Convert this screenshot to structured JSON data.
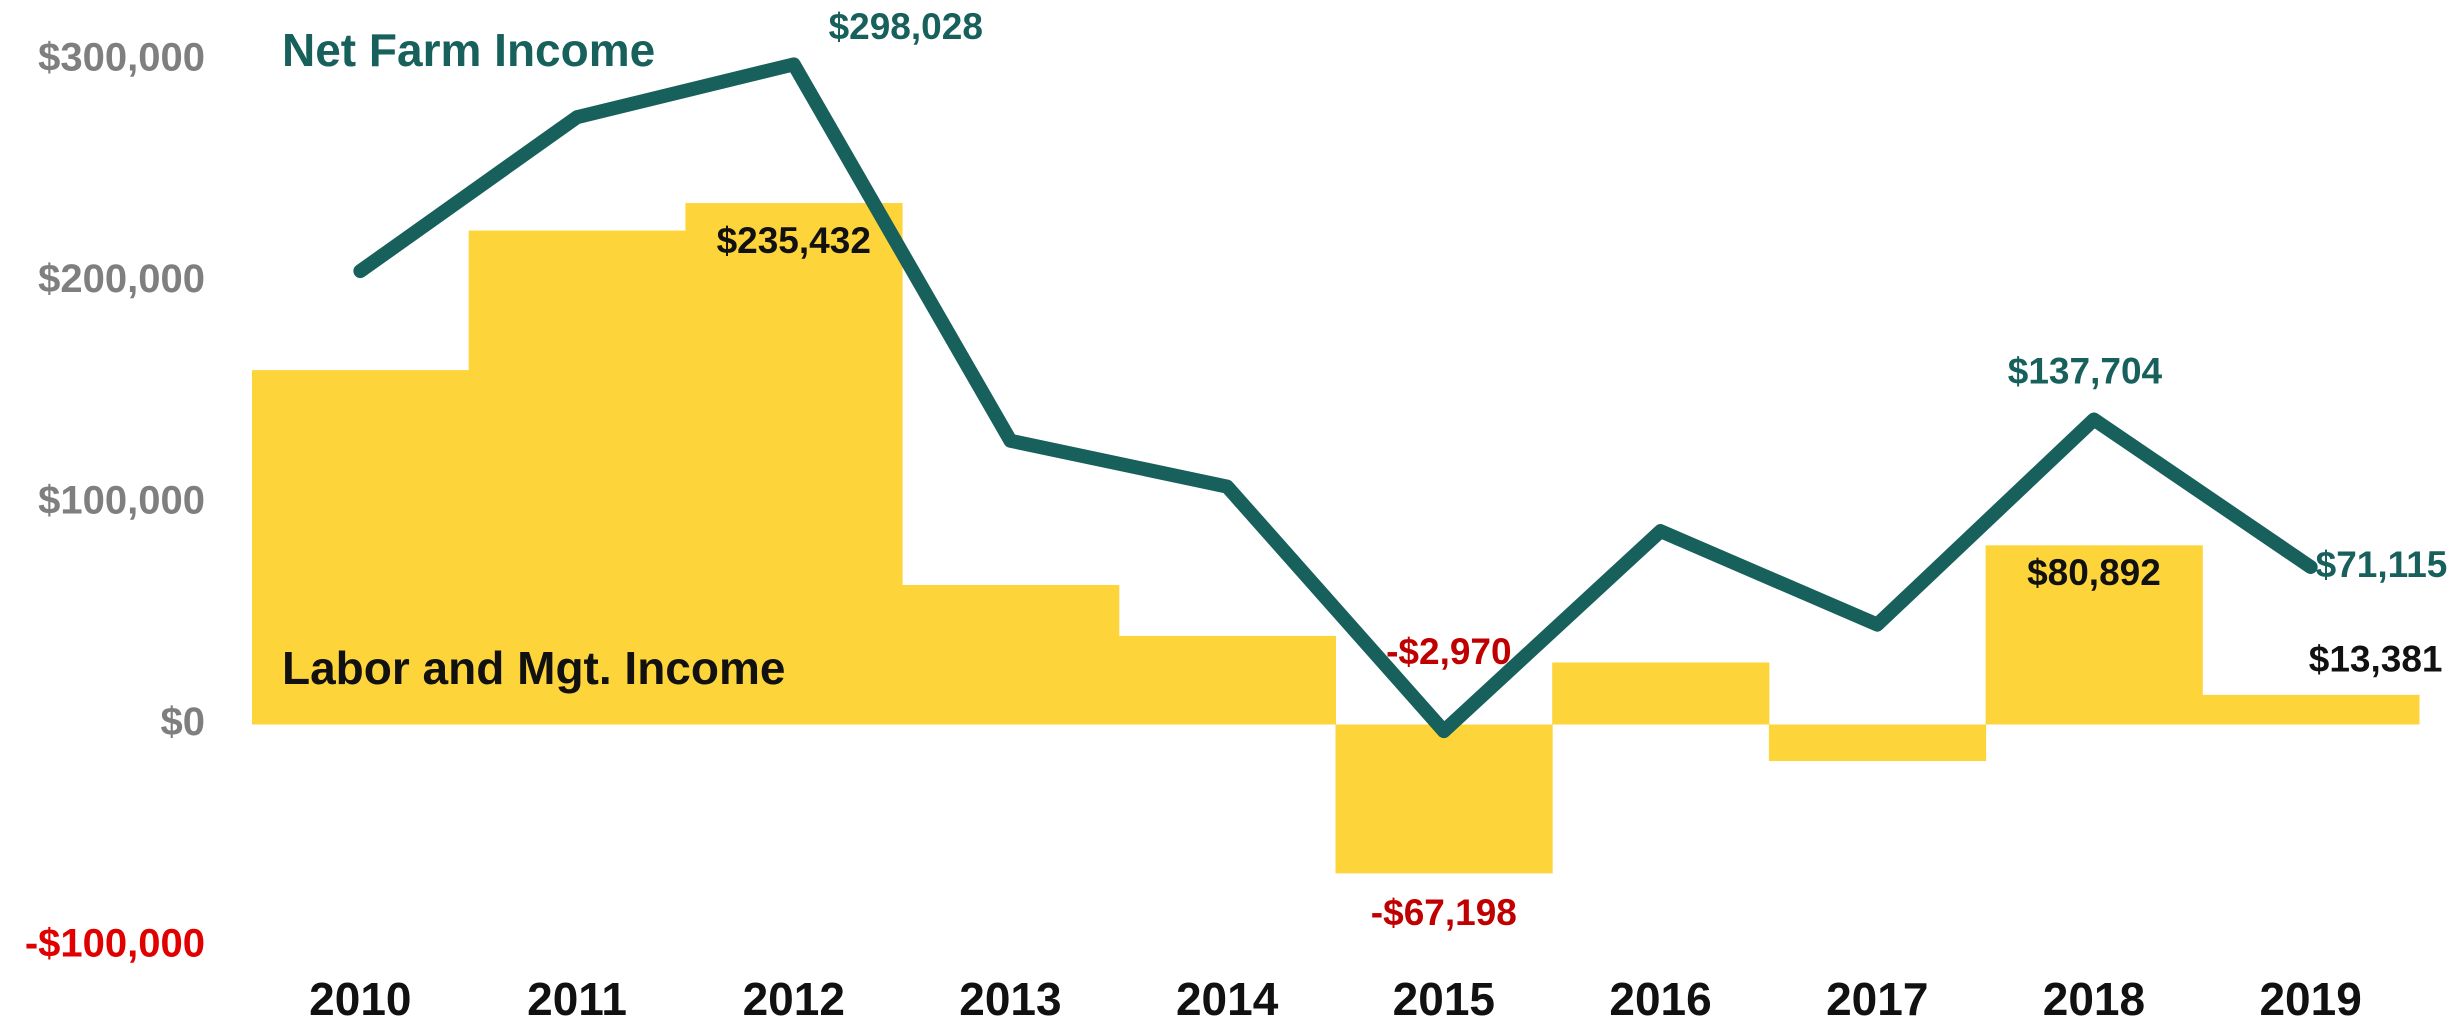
{
  "chart_data": {
    "type": "combo",
    "categories": [
      "2010",
      "2011",
      "2012",
      "2013",
      "2014",
      "2015",
      "2016",
      "2017",
      "2018",
      "2019"
    ],
    "series": [
      {
        "name": "Labor and Mgt. Income",
        "type": "bar",
        "color": "#fdd53b",
        "values": [
          160000,
          223000,
          235432,
          63000,
          40000,
          -67198,
          28000,
          -16500,
          80892,
          13381
        ],
        "value_labels": [
          null,
          null,
          "$235,432",
          null,
          null,
          "-$67,198",
          null,
          null,
          "$80,892",
          "$13,381"
        ]
      },
      {
        "name": "Net Farm Income",
        "type": "line",
        "color": "#17605c",
        "values": [
          204700,
          274200,
          298028,
          128100,
          107400,
          -2970,
          87300,
          45100,
          137704,
          71115
        ],
        "value_labels": [
          null,
          null,
          "$298,028",
          null,
          null,
          "-$2,970",
          null,
          null,
          "$137,704",
          "$71,115"
        ]
      }
    ],
    "ylim": [
      -100000,
      300000
    ],
    "yticks": [
      {
        "value": -100000,
        "label": "-$100,000"
      },
      {
        "value": 0,
        "label": "$0"
      },
      {
        "value": 100000,
        "label": "$100,000"
      },
      {
        "value": 200000,
        "label": "$200,000"
      },
      {
        "value": 300000,
        "label": "$300,000"
      }
    ],
    "grid": false,
    "negative_color": "#c00000"
  }
}
